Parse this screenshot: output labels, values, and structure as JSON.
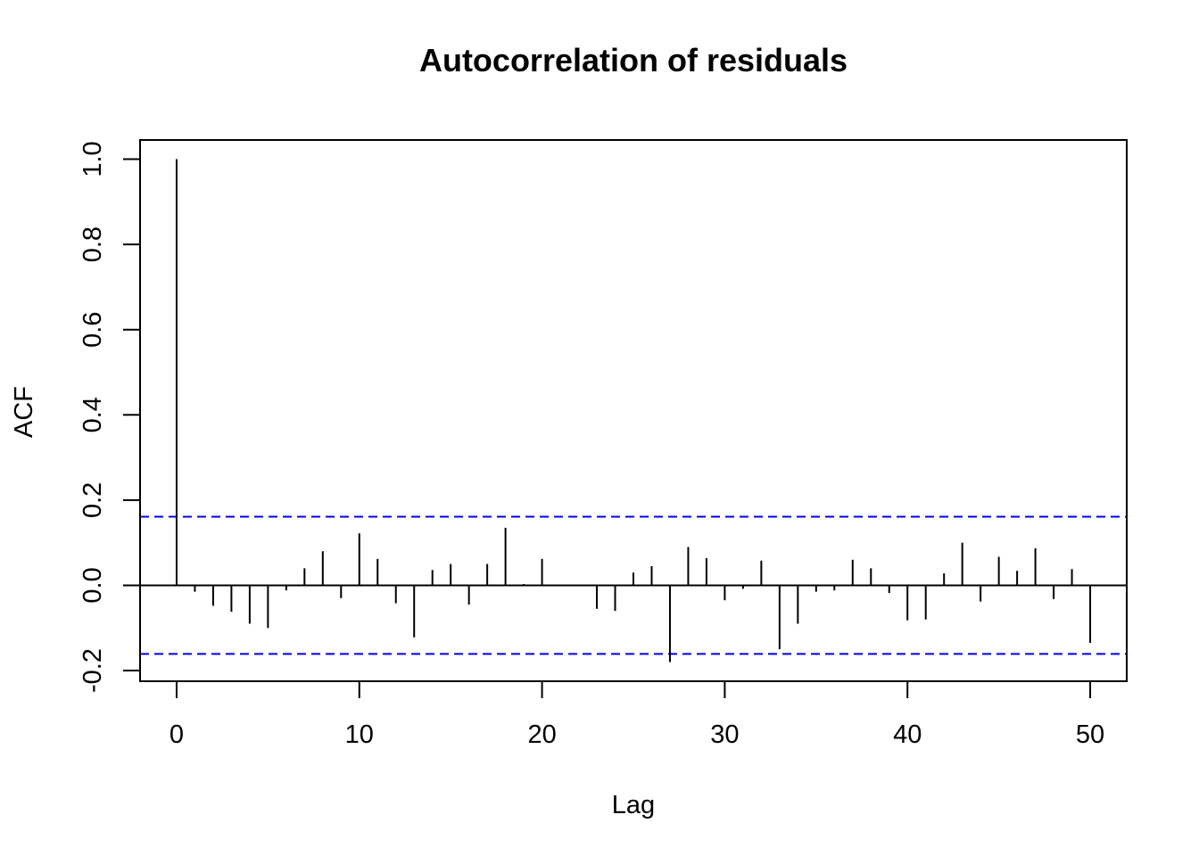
{
  "chart_data": {
    "type": "bar",
    "title": "Autocorrelation of residuals",
    "xlabel": "Lag",
    "ylabel": "ACF",
    "x": [
      0,
      1,
      2,
      3,
      4,
      5,
      6,
      7,
      8,
      9,
      10,
      11,
      12,
      13,
      14,
      15,
      16,
      17,
      18,
      19,
      20,
      21,
      22,
      23,
      24,
      25,
      26,
      27,
      28,
      29,
      30,
      31,
      32,
      33,
      34,
      35,
      36,
      37,
      38,
      39,
      40,
      41,
      42,
      43,
      44,
      45,
      46,
      47,
      48,
      49,
      50
    ],
    "values": [
      1.0,
      -0.015,
      -0.048,
      -0.062,
      -0.09,
      -0.1,
      -0.012,
      0.04,
      0.08,
      -0.03,
      0.122,
      0.062,
      -0.042,
      -0.122,
      0.036,
      0.05,
      -0.045,
      0.05,
      0.135,
      0.003,
      0.062,
      0.0,
      0.0,
      -0.055,
      -0.06,
      0.03,
      0.045,
      -0.18,
      0.09,
      0.064,
      -0.035,
      -0.008,
      0.058,
      -0.15,
      -0.09,
      -0.015,
      -0.012,
      0.06,
      0.04,
      -0.018,
      -0.082,
      -0.08,
      0.028,
      0.1,
      -0.038,
      0.067,
      0.034,
      0.087,
      -0.032,
      0.038,
      -0.135
    ],
    "ci_upper": 0.161,
    "ci_lower": -0.161,
    "ci_color": "#0000ee",
    "xlim": [
      -2,
      52
    ],
    "ylim": [
      -0.225,
      1.045
    ],
    "xticks": [
      0,
      10,
      20,
      30,
      40,
      50
    ],
    "xtick_labels": [
      "0",
      "10",
      "20",
      "30",
      "40",
      "50"
    ],
    "yticks": [
      -0.2,
      0.0,
      0.2,
      0.4,
      0.6,
      0.8,
      1.0
    ],
    "ytick_labels": [
      "-0.2",
      "0.0",
      "0.2",
      "0.4",
      "0.6",
      "0.8",
      "1.0"
    ],
    "grid": false,
    "legend": "none"
  }
}
